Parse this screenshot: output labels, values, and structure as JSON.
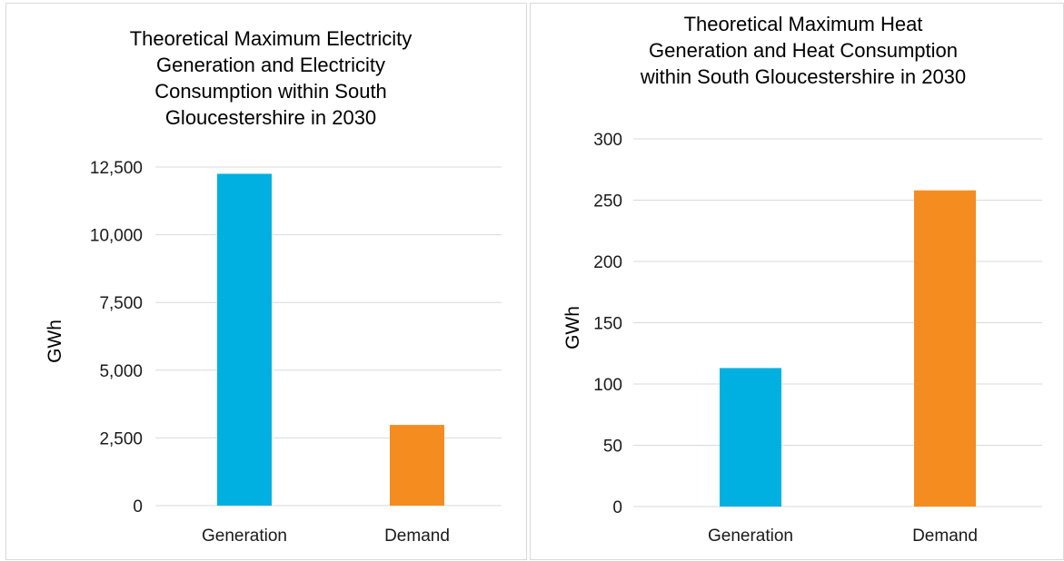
{
  "chart_data": [
    {
      "type": "bar",
      "title_lines": [
        "Theoretical Maximum Electricity",
        "Generation and Electricity",
        "Consumption within South",
        "Gloucestershire in 2030"
      ],
      "categories": [
        "Generation",
        "Demand"
      ],
      "values": [
        12250,
        2980
      ],
      "bar_colors": [
        "#00b0e0",
        "#f58c1f"
      ],
      "ylabel": "GWh",
      "ylim": [
        0,
        12500
      ],
      "yticks": [
        0,
        2500,
        5000,
        7500,
        10000,
        12500
      ],
      "ytick_labels": [
        "0",
        "2,500",
        "5,000",
        "7,500",
        "10,000",
        "12,500"
      ],
      "grid": true
    },
    {
      "type": "bar",
      "title_lines": [
        "Theoretical Maximum Heat",
        "Generation and Heat Consumption",
        "within South Gloucestershire in 2030"
      ],
      "categories": [
        "Generation",
        "Demand"
      ],
      "values": [
        113,
        258
      ],
      "bar_colors": [
        "#00b0e0",
        "#f58c1f"
      ],
      "ylabel": "GWh",
      "ylim": [
        0,
        300
      ],
      "yticks": [
        0,
        50,
        100,
        150,
        200,
        250,
        300
      ],
      "ytick_labels": [
        "0",
        "50",
        "100",
        "150",
        "200",
        "250",
        "300"
      ],
      "grid": true
    }
  ]
}
